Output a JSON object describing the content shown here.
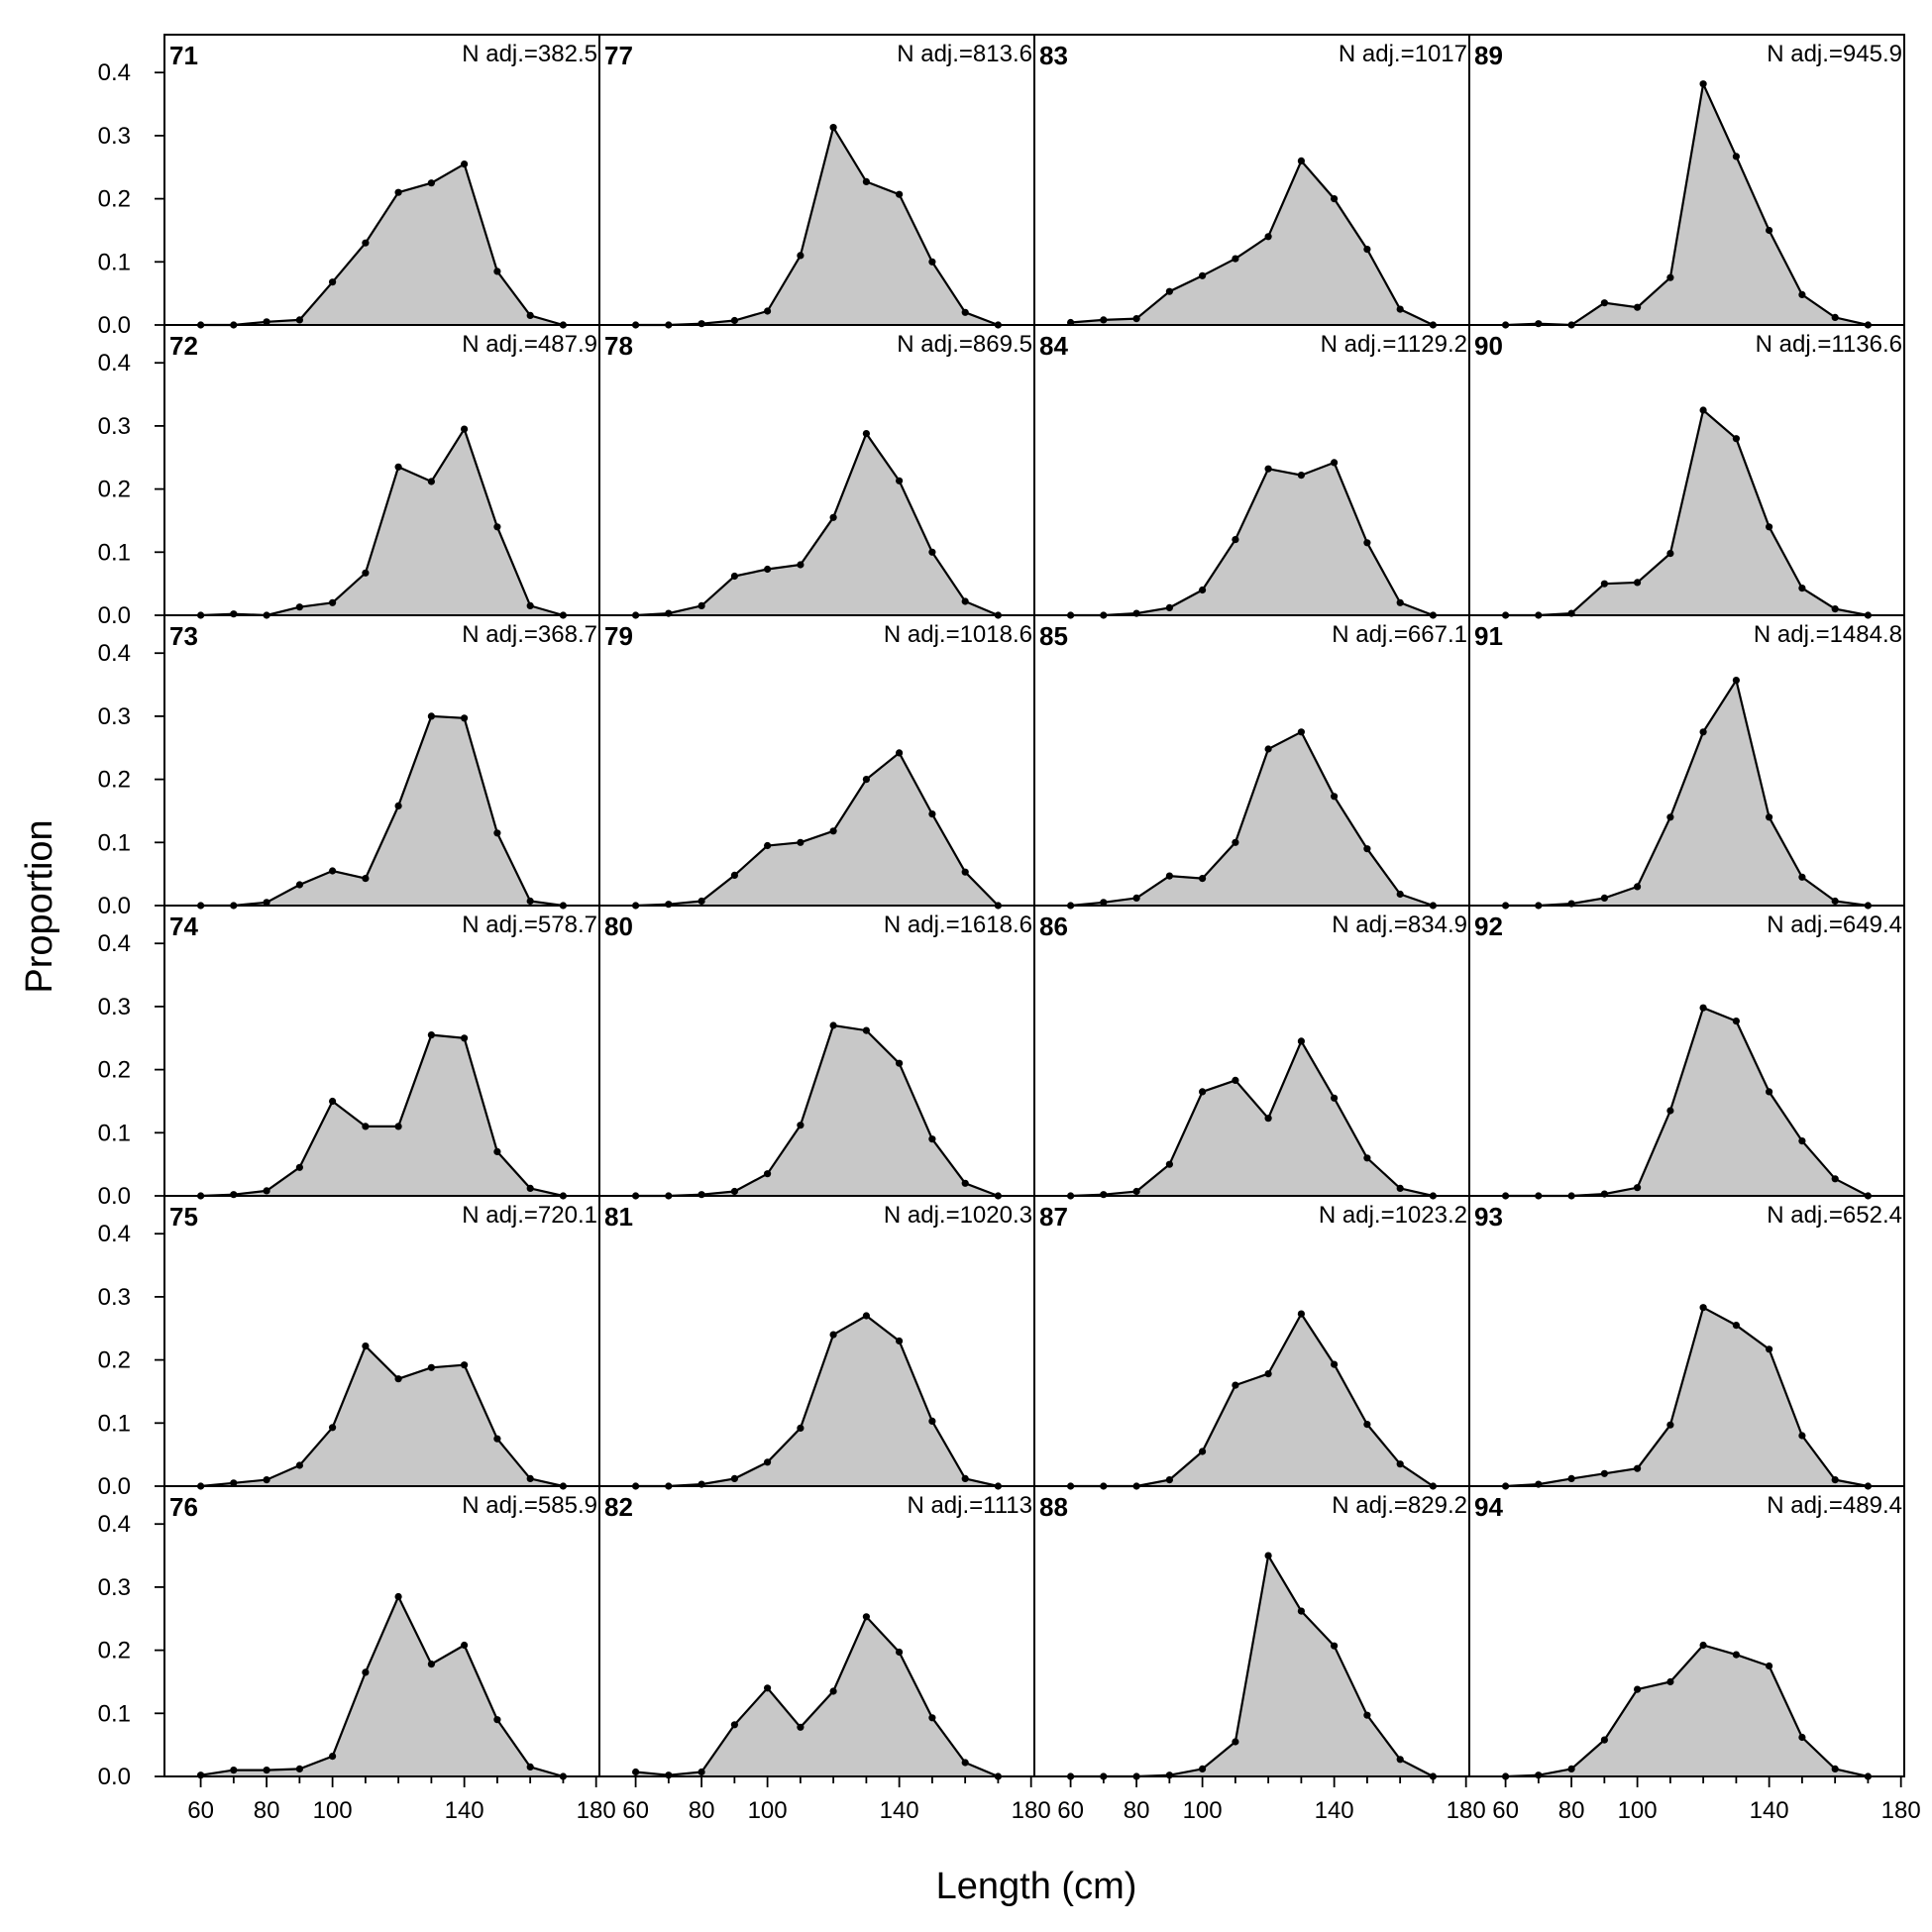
{
  "chart_data": {
    "type": "area",
    "xlabel": "Length (cm)",
    "ylabel": "Proportion",
    "xlim": [
      49,
      181
    ],
    "ylim": [
      0,
      0.46
    ],
    "x_ticks": [
      60,
      80,
      100,
      140,
      180
    ],
    "y_ticks": [
      0.0,
      0.1,
      0.2,
      0.3,
      0.4
    ],
    "y_tick_labels": [
      "0.0",
      "0.1",
      "0.2",
      "0.3",
      "0.4"
    ],
    "x": [
      60,
      70,
      80,
      90,
      100,
      110,
      120,
      130,
      140,
      150,
      160,
      170
    ],
    "layout": {
      "columns": 4,
      "rows": 6,
      "order": "column-major"
    },
    "panels": [
      {
        "label": "71",
        "n_adj": "N adj.=382.5",
        "values": [
          0,
          0,
          0.005,
          0.008,
          0.068,
          0.13,
          0.21,
          0.225,
          0.255,
          0.085,
          0.015,
          0
        ]
      },
      {
        "label": "72",
        "n_adj": "N adj.=487.9",
        "values": [
          0,
          0.002,
          0,
          0.013,
          0.02,
          0.067,
          0.235,
          0.212,
          0.295,
          0.14,
          0.015,
          0
        ]
      },
      {
        "label": "73",
        "n_adj": "N adj.=368.7",
        "values": [
          0,
          0,
          0.005,
          0.033,
          0.055,
          0.043,
          0.158,
          0.3,
          0.297,
          0.115,
          0.007,
          0
        ]
      },
      {
        "label": "74",
        "n_adj": "N adj.=578.7",
        "values": [
          0,
          0.002,
          0.008,
          0.045,
          0.15,
          0.11,
          0.11,
          0.255,
          0.25,
          0.07,
          0.012,
          0
        ]
      },
      {
        "label": "75",
        "n_adj": "N adj.=720.1",
        "values": [
          0,
          0.005,
          0.01,
          0.033,
          0.093,
          0.222,
          0.17,
          0.188,
          0.192,
          0.075,
          0.012,
          0
        ]
      },
      {
        "label": "76",
        "n_adj": "N adj.=585.9",
        "values": [
          0.002,
          0.01,
          0.01,
          0.012,
          0.032,
          0.165,
          0.285,
          0.178,
          0.208,
          0.09,
          0.015,
          0
        ]
      },
      {
        "label": "77",
        "n_adj": "N adj.=813.6",
        "values": [
          0,
          0,
          0.002,
          0.007,
          0.022,
          0.11,
          0.313,
          0.227,
          0.207,
          0.1,
          0.02,
          0
        ]
      },
      {
        "label": "78",
        "n_adj": "N adj.=869.5",
        "values": [
          0,
          0.003,
          0.015,
          0.062,
          0.073,
          0.08,
          0.155,
          0.288,
          0.213,
          0.1,
          0.022,
          0
        ]
      },
      {
        "label": "79",
        "n_adj": "N adj.=1018.6",
        "values": [
          0,
          0.002,
          0.007,
          0.048,
          0.095,
          0.1,
          0.118,
          0.2,
          0.242,
          0.145,
          0.053,
          0
        ]
      },
      {
        "label": "80",
        "n_adj": "N adj.=1618.6",
        "values": [
          0,
          0,
          0.002,
          0.007,
          0.035,
          0.112,
          0.27,
          0.262,
          0.21,
          0.09,
          0.02,
          0
        ]
      },
      {
        "label": "81",
        "n_adj": "N adj.=1020.3",
        "values": [
          0,
          0,
          0.003,
          0.012,
          0.038,
          0.092,
          0.24,
          0.27,
          0.23,
          0.103,
          0.012,
          0
        ]
      },
      {
        "label": "82",
        "n_adj": "N adj.=1113",
        "values": [
          0.007,
          0.002,
          0.007,
          0.082,
          0.14,
          0.078,
          0.135,
          0.253,
          0.197,
          0.093,
          0.022,
          0
        ]
      },
      {
        "label": "83",
        "n_adj": "N adj.=1017",
        "values": [
          0.004,
          0.008,
          0.01,
          0.053,
          0.078,
          0.105,
          0.14,
          0.26,
          0.2,
          0.12,
          0.025,
          0
        ]
      },
      {
        "label": "84",
        "n_adj": "N adj.=1129.2",
        "values": [
          0,
          0,
          0.003,
          0.012,
          0.04,
          0.12,
          0.232,
          0.222,
          0.242,
          0.115,
          0.02,
          0
        ]
      },
      {
        "label": "85",
        "n_adj": "N adj.=667.1",
        "values": [
          0,
          0.005,
          0.012,
          0.047,
          0.043,
          0.1,
          0.248,
          0.275,
          0.173,
          0.09,
          0.018,
          0
        ]
      },
      {
        "label": "86",
        "n_adj": "N adj.=834.9",
        "values": [
          0,
          0.002,
          0.007,
          0.05,
          0.165,
          0.183,
          0.123,
          0.245,
          0.155,
          0.06,
          0.012,
          0
        ]
      },
      {
        "label": "87",
        "n_adj": "N adj.=1023.2",
        "values": [
          0,
          0,
          0,
          0.01,
          0.055,
          0.16,
          0.178,
          0.273,
          0.193,
          0.098,
          0.035,
          0
        ]
      },
      {
        "label": "88",
        "n_adj": "N adj.=829.2",
        "values": [
          0,
          0,
          0,
          0.002,
          0.012,
          0.055,
          0.35,
          0.262,
          0.207,
          0.097,
          0.027,
          0
        ]
      },
      {
        "label": "89",
        "n_adj": "N adj.=945.9",
        "values": [
          0,
          0.002,
          0,
          0.035,
          0.028,
          0.075,
          0.382,
          0.267,
          0.15,
          0.048,
          0.012,
          0
        ]
      },
      {
        "label": "90",
        "n_adj": "N adj.=1136.6",
        "values": [
          0,
          0,
          0.003,
          0.05,
          0.052,
          0.098,
          0.325,
          0.28,
          0.14,
          0.043,
          0.01,
          0
        ]
      },
      {
        "label": "91",
        "n_adj": "N adj.=1484.8",
        "values": [
          0,
          0,
          0.003,
          0.012,
          0.03,
          0.14,
          0.275,
          0.357,
          0.14,
          0.045,
          0.007,
          0
        ]
      },
      {
        "label": "92",
        "n_adj": "N adj.=649.4",
        "values": [
          0,
          0,
          0,
          0.003,
          0.013,
          0.135,
          0.298,
          0.277,
          0.165,
          0.087,
          0.027,
          0
        ]
      },
      {
        "label": "93",
        "n_adj": "N adj.=652.4",
        "values": [
          0,
          0.003,
          0.012,
          0.02,
          0.028,
          0.097,
          0.283,
          0.255,
          0.217,
          0.08,
          0.01,
          0
        ]
      },
      {
        "label": "94",
        "n_adj": "N adj.=489.4",
        "values": [
          0,
          0.002,
          0.012,
          0.058,
          0.138,
          0.15,
          0.208,
          0.193,
          0.175,
          0.062,
          0.012,
          0
        ]
      }
    ]
  }
}
